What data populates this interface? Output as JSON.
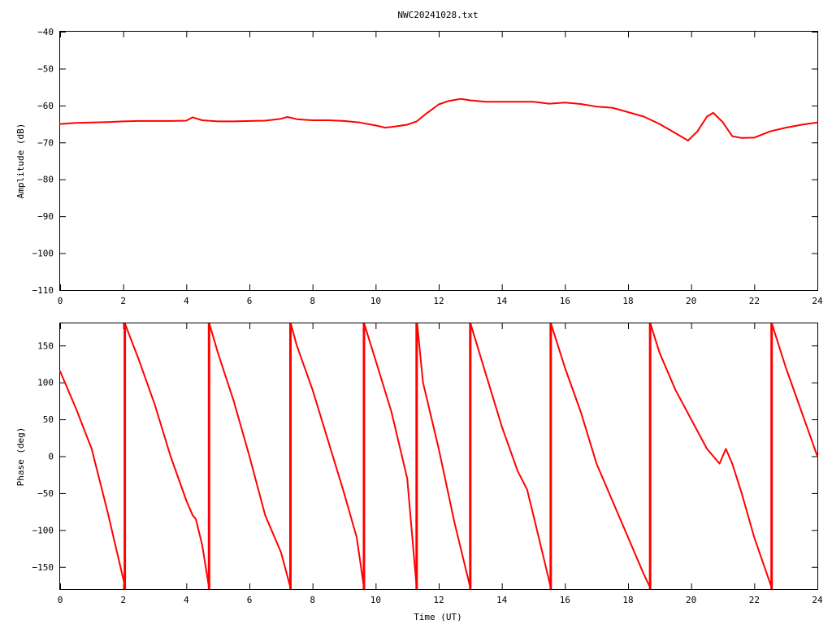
{
  "chart_data": [
    {
      "type": "line",
      "title": "NWC20241028.txt",
      "xlabel": "",
      "ylabel": "Amplitude (dB)",
      "xlim": [
        0,
        24
      ],
      "ylim": [
        -110,
        -40
      ],
      "xticks": [
        0,
        2,
        4,
        6,
        8,
        10,
        12,
        14,
        16,
        18,
        20,
        22,
        24
      ],
      "yticks": [
        -40,
        -50,
        -60,
        -70,
        -80,
        -90,
        -100,
        -110
      ],
      "grid": false,
      "series_color": "#ff0000",
      "series": [
        {
          "x": [
            0,
            0.5,
            1,
            1.5,
            2,
            2.5,
            3,
            3.5,
            4,
            4.2,
            4.5,
            5,
            5.5,
            6,
            6.5,
            7,
            7.2,
            7.5,
            8,
            8.5,
            9,
            9.5,
            10,
            10.3,
            10.6,
            11,
            11.3,
            11.6,
            12,
            12.3,
            12.7,
            13,
            13.5,
            14,
            14.5,
            15,
            15.5,
            16,
            16.5,
            17,
            17.5,
            18,
            18.5,
            19,
            19.5,
            19.9,
            20.2,
            20.5,
            20.7,
            21,
            21.3,
            21.6,
            22,
            22.5,
            23,
            23.5,
            24
          ],
          "values": [
            -65,
            -64.7,
            -64.6,
            -64.5,
            -64.3,
            -64.2,
            -64.2,
            -64.2,
            -64.1,
            -63.2,
            -64,
            -64.3,
            -64.3,
            -64.2,
            -64.1,
            -63.6,
            -63.1,
            -63.7,
            -64,
            -64,
            -64.2,
            -64.6,
            -65.4,
            -66,
            -65.7,
            -65.2,
            -64.3,
            -62.2,
            -59.7,
            -58.8,
            -58.2,
            -58.6,
            -59,
            -59,
            -59,
            -59,
            -59.5,
            -59.2,
            -59.6,
            -60.3,
            -60.6,
            -61.8,
            -63,
            -65,
            -67.5,
            -69.5,
            -67,
            -63,
            -62,
            -64.5,
            -68.3,
            -68.8,
            -68.7,
            -67,
            -66,
            -65.2,
            -64.6
          ]
        }
      ]
    },
    {
      "type": "line",
      "title": "",
      "xlabel": "Time (UT)",
      "ylabel": "Phase (deg)",
      "xlim": [
        0,
        24
      ],
      "ylim": [
        -180,
        180
      ],
      "xticks": [
        0,
        2,
        4,
        6,
        8,
        10,
        12,
        14,
        16,
        18,
        20,
        22,
        24
      ],
      "yticks": [
        150,
        100,
        50,
        0,
        -50,
        -100,
        -150
      ],
      "grid": false,
      "series_color": "#ff0000",
      "phase_wraps": [
        2.05,
        4.72,
        7.3,
        9.63,
        11.3,
        13.0,
        15.55,
        18.7,
        22.55
      ],
      "series": [
        {
          "x": [
            0,
            0.5,
            1,
            1.5,
            2.05
          ],
          "values": [
            115,
            65,
            10,
            -75,
            -175
          ]
        },
        {
          "x": [
            2.07,
            2.5,
            3,
            3.5,
            4,
            4.2,
            4.3,
            4.5,
            4.72
          ],
          "values": [
            178,
            130,
            70,
            0,
            -60,
            -80,
            -85,
            -120,
            -178
          ]
        },
        {
          "x": [
            4.74,
            5,
            5.5,
            6,
            6.5,
            7,
            7.3
          ],
          "values": [
            178,
            140,
            75,
            0,
            -80,
            -130,
            -178
          ]
        },
        {
          "x": [
            7.32,
            7.5,
            8,
            8.5,
            9,
            9.4,
            9.63
          ],
          "values": [
            178,
            150,
            90,
            20,
            -50,
            -110,
            -178
          ]
        },
        {
          "x": [
            9.65,
            10,
            10.5,
            11,
            11.3
          ],
          "values": [
            178,
            130,
            60,
            -30,
            -178
          ]
        },
        {
          "x": [
            11.32,
            11.5,
            12,
            12.5,
            13.0
          ],
          "values": [
            178,
            100,
            10,
            -90,
            -178
          ]
        },
        {
          "x": [
            13.02,
            13.5,
            14,
            14.5,
            14.8,
            15,
            15.55
          ],
          "values": [
            178,
            110,
            40,
            -20,
            -45,
            -80,
            -178
          ]
        },
        {
          "x": [
            15.57,
            16,
            16.5,
            17,
            17.5,
            18,
            18.5,
            18.7
          ],
          "values": [
            178,
            120,
            60,
            -10,
            -60,
            -110,
            -160,
            -178
          ]
        },
        {
          "x": [
            18.72,
            19,
            19.5,
            20,
            20.5,
            20.9,
            21.1,
            21.3,
            21.6,
            22,
            22.55
          ],
          "values": [
            178,
            140,
            90,
            50,
            10,
            -10,
            10,
            -10,
            -50,
            -110,
            -178
          ]
        },
        {
          "x": [
            22.57,
            23,
            23.5,
            24
          ],
          "values": [
            178,
            120,
            60,
            0
          ]
        }
      ]
    }
  ]
}
